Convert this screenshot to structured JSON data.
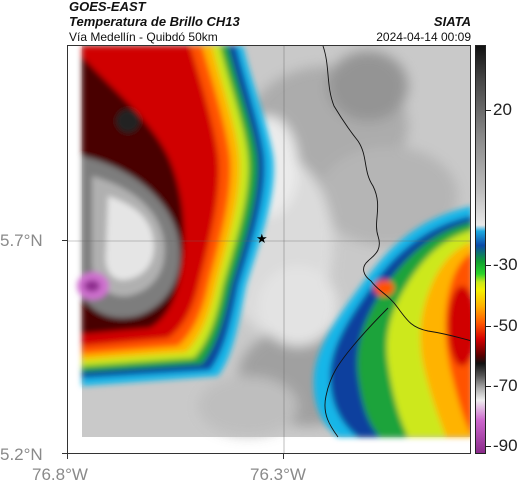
{
  "header": {
    "satellite": "GOES-EAST",
    "product": "Temperatura de Brillo CH13",
    "route": "Vía Medellín - Quibdó 50km",
    "org": "SIATA",
    "timestamp": "2024-04-14 00:09"
  },
  "axes": {
    "y_labels": [
      "5.7°N",
      "5.2°N"
    ],
    "x_labels": [
      "76.8°W",
      "76.3°W"
    ]
  },
  "colorbar": {
    "labels": [
      "20",
      "-30",
      "-50",
      "-70",
      "-90"
    ]
  },
  "map": {
    "marker_icon": "star-icon"
  }
}
